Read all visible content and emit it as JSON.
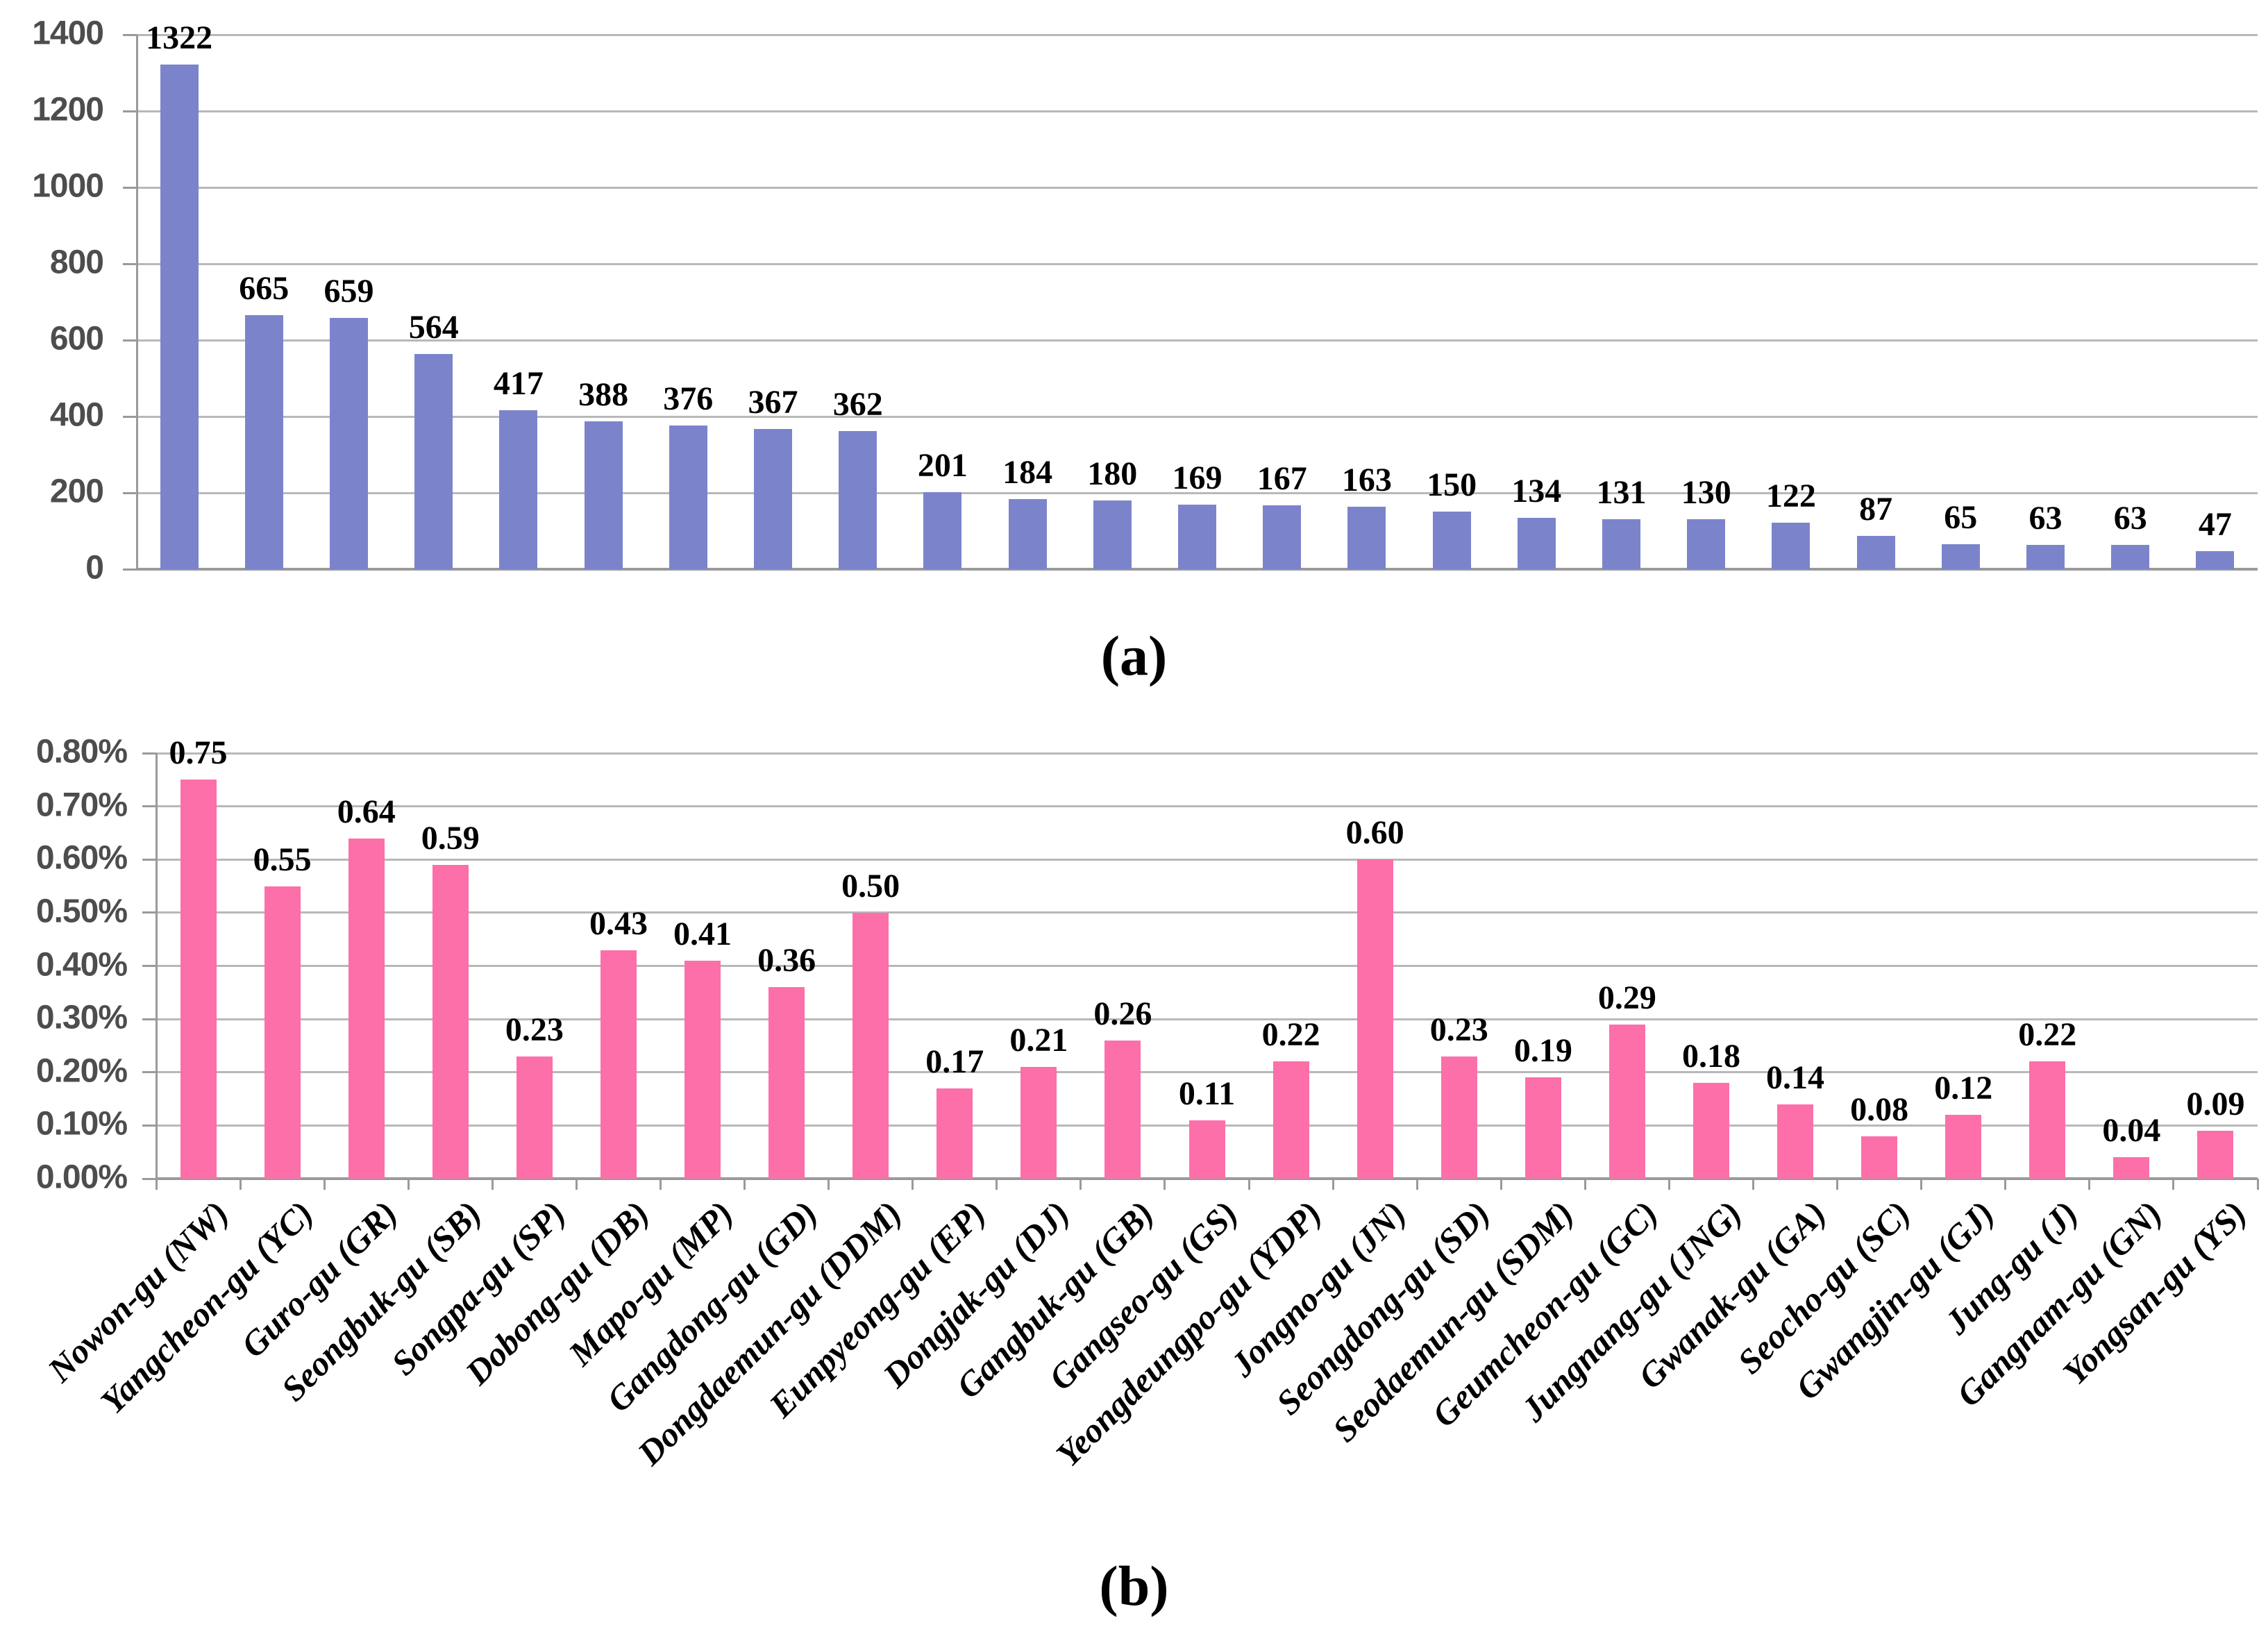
{
  "figure": {
    "captions": {
      "a": "(a)",
      "b": "(b)"
    }
  },
  "colors": {
    "bar_blue": "#7b84cb",
    "bar_pink": "#fd6fa8",
    "gridline": "#b8b8b8",
    "axis_line": "#9a9a9a",
    "tick_label": "#4d4d4d",
    "data_label": "#000000"
  },
  "chart_data": [
    {
      "type": "bar",
      "title": "",
      "xlabel": "",
      "ylabel": "",
      "legend": null,
      "grid": true,
      "categories": [
        "Nowon-gu (NW)",
        "Yangcheon-gu (YC)",
        "Guro-gu (GR)",
        "Seongbuk-gu (SB)",
        "Songpa-gu (SP)",
        "Dobong-gu (DB)",
        "Mapo-gu (MP)",
        "Gangdong-gu (GD)",
        "Dongdaemun-gu (DDM)",
        "Eunpyeong-gu (EP)",
        "Dongjak-gu (DJ)",
        "Gangbuk-gu (GB)",
        "Gangseo-gu (GS)",
        "Yeongdeungpo-gu (YDP)",
        "Jongno-gu (JN)",
        "Seongdong-gu (SD)",
        "Seodaemun-gu (SDM)",
        "Geumcheon-gu (GC)",
        "Jungnang-gu (JNG)",
        "Gwanak-gu (GA)",
        "Seocho-gu (SC)",
        "Gwangjin-gu (GJ)",
        "Jung-gu (J)",
        "Gangnam-gu (GN)",
        "Yongsan-gu (YS)"
      ],
      "values": [
        1322,
        665,
        659,
        564,
        417,
        388,
        376,
        367,
        362,
        201,
        184,
        180,
        169,
        167,
        163,
        150,
        134,
        131,
        130,
        122,
        87,
        65,
        63,
        63,
        47
      ],
      "value_labels": [
        "1322",
        "665",
        "659",
        "564",
        "417",
        "388",
        "376",
        "367",
        "362",
        "201",
        "184",
        "180",
        "169",
        "167",
        "163",
        "150",
        "134",
        "131",
        "130",
        "122",
        "87",
        "65",
        "63",
        "63",
        "47"
      ],
      "ylim": [
        0,
        1400
      ],
      "ytick_labels": [
        "0",
        "200",
        "400",
        "600",
        "800",
        "1000",
        "1200",
        "1400"
      ],
      "bar_color": "#7b84cb",
      "show_x_labels": false
    },
    {
      "type": "bar",
      "title": "",
      "xlabel": "",
      "ylabel": "",
      "legend": null,
      "grid": true,
      "categories": [
        "Nowon-gu (NW)",
        "Yangcheon-gu (YC)",
        "Guro-gu (GR)",
        "Seongbuk-gu (SB)",
        "Songpa-gu (SP)",
        "Dobong-gu (DB)",
        "Mapo-gu (MP)",
        "Gangdong-gu (GD)",
        "Dongdaemun-gu (DDM)",
        "Eunpyeong-gu (EP)",
        "Dongjak-gu (DJ)",
        "Gangbuk-gu (GB)",
        "Gangseo-gu (GS)",
        "Yeongdeungpo-gu (YDP)",
        "Jongno-gu (JN)",
        "Seongdong-gu (SD)",
        "Seodaemun-gu (SDM)",
        "Geumcheon-gu (GC)",
        "Jungnang-gu (JNG)",
        "Gwanak-gu (GA)",
        "Seocho-gu (SC)",
        "Gwangjin-gu (GJ)",
        "Jung-gu (J)",
        "Gangnam-gu (GN)",
        "Yongsan-gu (YS)"
      ],
      "values": [
        0.75,
        0.55,
        0.64,
        0.59,
        0.23,
        0.43,
        0.41,
        0.36,
        0.5,
        0.17,
        0.21,
        0.26,
        0.11,
        0.22,
        0.6,
        0.23,
        0.19,
        0.29,
        0.18,
        0.14,
        0.08,
        0.12,
        0.22,
        0.04,
        0.09
      ],
      "value_labels": [
        "0.75",
        "0.55",
        "0.64",
        "0.59",
        "0.23",
        "0.43",
        "0.41",
        "0.36",
        "0.50",
        "0.17",
        "0.21",
        "0.26",
        "0.11",
        "0.22",
        "0.60",
        "0.23",
        "0.19",
        "0.29",
        "0.18",
        "0.14",
        "0.08",
        "0.12",
        "0.22",
        "0.04",
        "0.09"
      ],
      "ylim": [
        0,
        0.8
      ],
      "ytick_labels": [
        "0.00%",
        "0.10%",
        "0.20%",
        "0.30%",
        "0.40%",
        "0.50%",
        "0.60%",
        "0.70%",
        "0.80%"
      ],
      "bar_color": "#fd6fa8",
      "show_x_labels": true
    }
  ]
}
